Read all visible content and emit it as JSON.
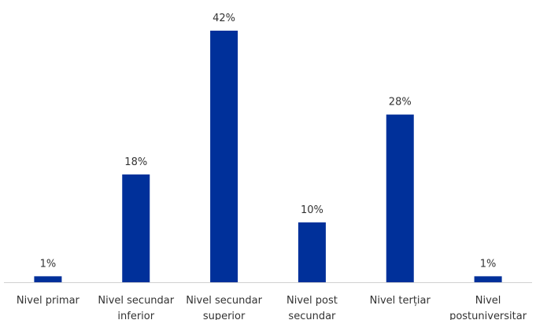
{
  "chart_data": {
    "type": "bar",
    "categories": [
      [
        "Nivel primar"
      ],
      [
        "Nivel secundar",
        "inferior"
      ],
      [
        "Nivel secundar",
        "superior"
      ],
      [
        "Nivel post",
        "secundar"
      ],
      [
        "Nivel terțiar"
      ],
      [
        "Nivel",
        "postuniversitar"
      ]
    ],
    "values": [
      1,
      18,
      42,
      10,
      28,
      1
    ],
    "value_labels": [
      "1%",
      "18%",
      "42%",
      "10%",
      "28%",
      "1%"
    ],
    "title": "",
    "xlabel": "",
    "ylabel": "",
    "ylim": [
      0,
      42
    ],
    "grid": false,
    "legend": "none",
    "bar_color": "#00309A"
  }
}
